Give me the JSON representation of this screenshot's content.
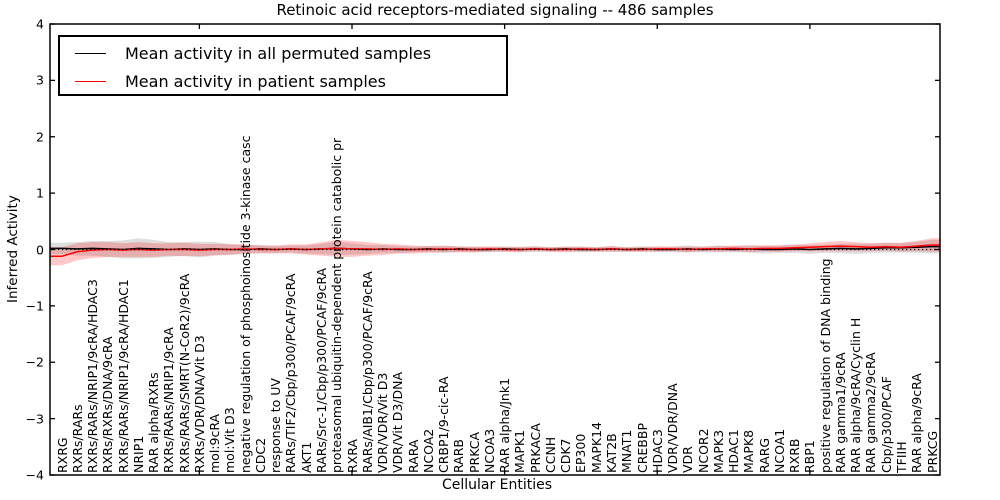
{
  "figure": {
    "title": "Retinoic acid receptors-mediated signaling -- 486 samples",
    "xlabel": "Cellular Entities",
    "ylabel": "Inferred Activity"
  },
  "axes": {
    "ylim": [
      -4,
      4
    ],
    "y_tick_labels": [
      "4",
      "3",
      "2",
      "1",
      "0",
      "−1",
      "−2",
      "−3",
      "−4"
    ]
  },
  "legend": {
    "items": [
      {
        "label": "Mean activity in all permuted samples",
        "color": "#000000"
      },
      {
        "label": "Mean activity in patient samples",
        "color": "#ff0000"
      }
    ]
  },
  "chart_data": {
    "type": "line",
    "title": "Retinoic acid receptors-mediated signaling -- 486 samples",
    "xlabel": "Cellular Entities",
    "ylabel": "Inferred Activity",
    "ylim": [
      -4,
      4
    ],
    "grid": false,
    "legend_position": "upper left",
    "zero_line": {
      "style": "dotted",
      "color": "#000000",
      "y": 0
    },
    "x_major_ticks_every": 10,
    "categories": [
      "RXRG",
      "RXRs/RARs",
      "RXRs/RARs/NRIP1/9cRA/HDAC3",
      "RXRs/RXRs/DNA/9cRA",
      "RXRs/RARs/NRIP1/9cRA/HDAC1",
      "NRIP1",
      "RAR alpha/RXRs",
      "RXRs/RARs/NRIP1/9cRA",
      "RXRs/RARs/SMRT(N-CoR2)/9cRA",
      "RXRs/VDR/DNA/Vit D3",
      "mol:9cRA",
      "mol:Vit D3",
      "negative regulation of phosphoinositide 3-kinase casc",
      "CDC2",
      "response to UV",
      "RARs/TIF2/Cbp/p300/PCAF/9cRA",
      "AKT1",
      "RARs/Src-1/Cbp/p300/PCAF/9cRA",
      "proteasomal ubiquitin-dependent protein catabolic pr",
      "RXRA",
      "RARs/AIB1/Cbp/p300/PCAF/9cRA",
      "VDR/VDR/Vit D3",
      "VDR/Vit D3/DNA",
      "RARA",
      "NCOA2",
      "CRBP1/9-cic-RA",
      "RARB",
      "PRKCA",
      "NCOA3",
      "RAR alpha/Jnk1",
      "MAPK1",
      "PRKACA",
      "CCNH",
      "CDK7",
      "EP300",
      "MAPK14",
      "KAT2B",
      "MNAT1",
      "CREBBP",
      "HDAC3",
      "VDR/VDR/DNA",
      "VDR",
      "NCOR2",
      "MAPK3",
      "HDAC1",
      "MAPK8",
      "RARG",
      "NCOA1",
      "RXRB",
      "RBP1",
      "positive regulation of DNA binding",
      "RAR gamma1/9cRA",
      "RAR alpha/9cRA/Cyclin H",
      "RAR gamma2/9cRA",
      "Cbp/p300/PCAF",
      "TFIIH",
      "RAR alpha/9cRA",
      "PRKCG"
    ],
    "series": [
      {
        "name": "Mean activity in all permuted samples",
        "color": "#000000",
        "band_color": "#000000",
        "band_opacity": 0.13,
        "values": [
          0.02,
          0.01,
          0.02,
          0.01,
          0,
          0.02,
          0.01,
          0,
          0.01,
          0,
          0.01,
          0,
          0,
          0.01,
          0,
          0.01,
          0,
          0.01,
          0.02,
          0.01,
          0,
          0.01,
          0,
          0,
          0.01,
          0,
          0.01,
          0,
          0,
          0.01,
          0,
          0.01,
          0,
          0.01,
          0,
          0,
          0.01,
          0,
          0.01,
          0,
          0,
          0.01,
          0,
          0.01,
          0,
          0.01,
          0,
          0,
          0.01,
          0,
          0.01,
          0.02,
          0.01,
          0.02,
          0.03,
          0.03,
          0.04,
          0.05
        ],
        "band_halfwidth": [
          0.1,
          0.12,
          0.13,
          0.14,
          0.16,
          0.18,
          0.16,
          0.13,
          0.12,
          0.14,
          0.12,
          0.1,
          0.08,
          0.07,
          0.06,
          0.06,
          0.07,
          0.09,
          0.12,
          0.1,
          0.08,
          0.07,
          0.06,
          0.05,
          0.05,
          0.06,
          0.05,
          0.05,
          0.04,
          0.05,
          0.04,
          0.05,
          0.04,
          0.04,
          0.05,
          0.04,
          0.05,
          0.04,
          0.05,
          0.04,
          0.05,
          0.06,
          0.05,
          0.06,
          0.05,
          0.06,
          0.07,
          0.06,
          0.07,
          0.08,
          0.07,
          0.08,
          0.09,
          0.08,
          0.09,
          0.08,
          0.1,
          0.12
        ]
      },
      {
        "name": "Mean activity in patient samples",
        "color": "#ff0000",
        "band_color": "#ff0000",
        "band_opacity": 0.22,
        "values": [
          -0.12,
          -0.04,
          -0.01,
          0,
          -0.01,
          0,
          -0.01,
          0,
          0,
          -0.01,
          0,
          0,
          0.01,
          0,
          0,
          0.01,
          0,
          0.01,
          0.02,
          0.01,
          0.01,
          0,
          0.01,
          0,
          0,
          0.01,
          0,
          0,
          0.01,
          0,
          0,
          0.01,
          0,
          0,
          0.01,
          0,
          0.01,
          0,
          0,
          0.01,
          0.01,
          0,
          0.01,
          0.01,
          0.02,
          0.01,
          0.02,
          0.02,
          0.03,
          0.04,
          0.05,
          0.06,
          0.05,
          0.04,
          0.05,
          0.04,
          0.06,
          0.08
        ],
        "band_halfwidth": [
          0.16,
          0.15,
          0.14,
          0.13,
          0.12,
          0.13,
          0.12,
          0.11,
          0.12,
          0.11,
          0.1,
          0.09,
          0.08,
          0.07,
          0.07,
          0.08,
          0.09,
          0.12,
          0.15,
          0.14,
          0.12,
          0.1,
          0.08,
          0.07,
          0.06,
          0.06,
          0.05,
          0.05,
          0.05,
          0.04,
          0.05,
          0.04,
          0.04,
          0.05,
          0.04,
          0.04,
          0.05,
          0.04,
          0.04,
          0.05,
          0.04,
          0.05,
          0.04,
          0.05,
          0.05,
          0.06,
          0.05,
          0.06,
          0.06,
          0.07,
          0.08,
          0.09,
          0.08,
          0.07,
          0.07,
          0.08,
          0.09,
          0.12
        ]
      }
    ]
  }
}
